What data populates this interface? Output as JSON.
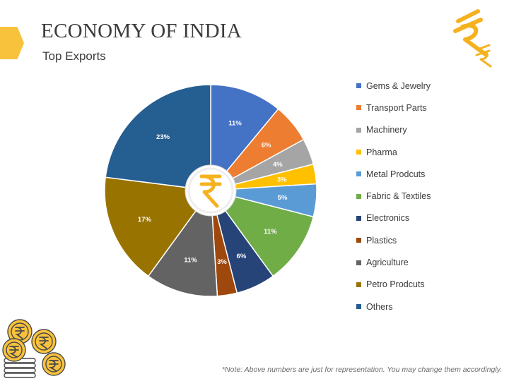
{
  "header": {
    "title": "ECONOMY OF INDIA",
    "subtitle": "Top Exports"
  },
  "colors": {
    "accent": "#f9c23c",
    "rupee_gold": "#f5b21f"
  },
  "icons": {
    "logo": "rupee-logo-icon",
    "center": "rupee-icon",
    "coins": "rupee-coins-icon"
  },
  "chart_data": {
    "type": "pie",
    "title": "",
    "categories": [
      "Gems & Jewelry",
      "Transport Parts",
      "Machinery",
      "Pharma",
      "Metal Prodcuts",
      "Fabric & Textiles",
      "Electronics",
      "Plastics",
      "Agriculture",
      "Petro Prodcuts",
      "Others"
    ],
    "values": [
      11,
      6,
      4,
      3,
      5,
      11,
      6,
      3,
      11,
      17,
      23
    ],
    "labels": [
      "11%",
      "6%",
      "4%",
      "3%",
      "5%",
      "11%",
      "6%",
      "3%",
      "11%",
      "17%",
      "23%"
    ],
    "colors": [
      "#4472c4",
      "#ed7d31",
      "#a5a5a5",
      "#ffc000",
      "#5b9bd5",
      "#70ad47",
      "#264478",
      "#9e480e",
      "#636363",
      "#997300",
      "#255e91"
    ],
    "legend": "right"
  },
  "footer": {
    "note": "*Note: Above numbers are just for representation. You may change them accordingly."
  }
}
